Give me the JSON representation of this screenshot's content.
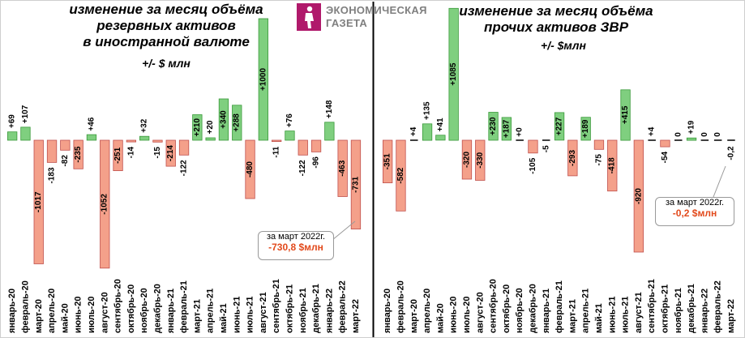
{
  "header": {
    "left_title": [
      "изменение за месяц объёма",
      "резервных активов",
      "в иностранной валюте"
    ],
    "left_unit": "+/-  $ млн",
    "right_title": [
      "изменение за месяц объёма",
      "прочих активов ЗВР"
    ],
    "right_unit": "+/-  $млн",
    "logo_line1": "ЭКОНОМИЧЕСКАЯ",
    "logo_line2": "ГАЗЕТА"
  },
  "colors": {
    "positive_fill": "#7fcf7f",
    "positive_stroke": "#3a9a3a",
    "negative_fill": "#f4a08a",
    "negative_stroke": "#c0504d",
    "zero_line": "#000000",
    "callout_value": "#e24a1c"
  },
  "callouts": {
    "left": {
      "line1": "за март 2022г.",
      "line2": "-730,8 $млн"
    },
    "right": {
      "line1": "за март 2022г.",
      "line2": "-0,2 $млн"
    }
  },
  "chart_data": [
    {
      "type": "bar",
      "title": "изменение за месяц объёма резервных активов в иностранной валюте",
      "ylabel": "+/- $ млн",
      "ylim": [
        -1100,
        1150
      ],
      "categories": [
        "январь-20",
        "февраль-20",
        "март-20",
        "апрель-20",
        "май-20",
        "июнь-20",
        "июль-20",
        "август-20",
        "сентябрь-20",
        "октябрь-20",
        "ноябрь-20",
        "декабрь-20",
        "январь-21",
        "февраль-21",
        "март-21",
        "апрель-21",
        "май-21",
        "июнь-21",
        "июль-21",
        "август-21",
        "сентябрь-21",
        "октябрь-21",
        "ноябрь-21",
        "декабрь-21",
        "январь-22",
        "февраль-22",
        "март-22"
      ],
      "values": [
        69,
        107,
        -1017,
        -183,
        -82,
        -235,
        46,
        -1052,
        -251,
        -14,
        32,
        -15,
        -214,
        -122,
        210,
        20,
        340,
        288,
        -480,
        1000,
        -11,
        76,
        -122,
        -96,
        148,
        -463,
        -731
      ],
      "labels": [
        "+69",
        "+107",
        "-1017",
        "-183",
        "-82",
        "-235",
        "+46",
        "-1052",
        "-251",
        "-14",
        "+32",
        "-15",
        "-214",
        "-122",
        "+210",
        "+20",
        "+340",
        "+288",
        "-480",
        "+1000",
        "-11",
        "+76",
        "-122",
        "-96",
        "+148",
        "-463",
        "-731"
      ]
    },
    {
      "type": "bar",
      "title": "изменение за месяц объёма прочих активов ЗВР",
      "ylabel": "+/- $млн",
      "ylim": [
        -1100,
        1150
      ],
      "categories": [
        "январь-20",
        "февраль-20",
        "март-20",
        "апрель-20",
        "май-20",
        "июнь-20",
        "июль-20",
        "август-20",
        "сентябрь-20",
        "октябрь-20",
        "ноябрь-20",
        "декабрь-20",
        "январь-21",
        "февраль-21",
        "март-21",
        "апрель-21",
        "май-21",
        "июнь-21",
        "июль-21",
        "август-21",
        "сентябрь-21",
        "октябрь-21",
        "ноябрь-21",
        "декабрь-21",
        "январь-22",
        "февраль-22",
        "март-22"
      ],
      "values": [
        -351,
        -582,
        4,
        135,
        41,
        1085,
        -320,
        -330,
        230,
        187,
        0,
        -105,
        -5,
        227,
        -293,
        189,
        -75,
        -418,
        415,
        -920,
        4,
        -54,
        0,
        19,
        0,
        0,
        -0.2
      ],
      "labels": [
        "-351",
        "-582",
        "+4",
        "+135",
        "+41",
        "+1085",
        "-320",
        "-330",
        "+230",
        "+187",
        "+0",
        "-105",
        "-5",
        "+227",
        "-293",
        "+189",
        "-75",
        "-418",
        "+415",
        "-920",
        "+4",
        "-54",
        "0",
        "+19",
        "0",
        "0",
        "-0,2"
      ]
    }
  ]
}
